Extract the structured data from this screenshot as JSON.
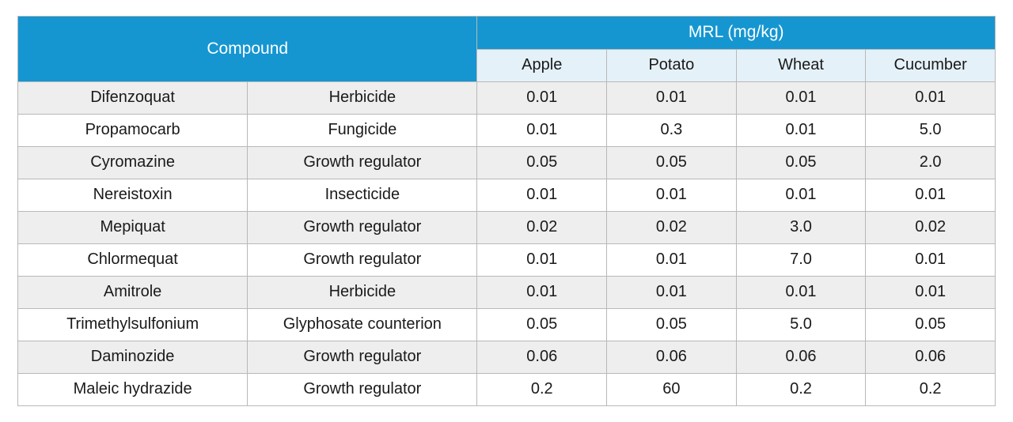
{
  "table": {
    "type": "table",
    "header_main": {
      "compound": "Compound",
      "mrl": "MRL (mg/kg)"
    },
    "header_sub": [
      "Apple",
      "Potato",
      "Wheat",
      "Cucumber"
    ],
    "rows": [
      {
        "name": "Difenzoquat",
        "type": "Herbicide",
        "vals": [
          "0.01",
          "0.01",
          "0.01",
          "0.01"
        ]
      },
      {
        "name": "Propamocarb",
        "type": "Fungicide",
        "vals": [
          "0.01",
          "0.3",
          "0.01",
          "5.0"
        ]
      },
      {
        "name": "Cyromazine",
        "type": "Growth regulator",
        "vals": [
          "0.05",
          "0.05",
          "0.05",
          "2.0"
        ]
      },
      {
        "name": "Nereistoxin",
        "type": "Insecticide",
        "vals": [
          "0.01",
          "0.01",
          "0.01",
          "0.01"
        ]
      },
      {
        "name": "Mepiquat",
        "type": "Growth regulator",
        "vals": [
          "0.02",
          "0.02",
          "3.0",
          "0.02"
        ]
      },
      {
        "name": "Chlormequat",
        "type": "Growth regulator",
        "vals": [
          "0.01",
          "0.01",
          "7.0",
          "0.01"
        ]
      },
      {
        "name": "Amitrole",
        "type": "Herbicide",
        "vals": [
          "0.01",
          "0.01",
          "0.01",
          "0.01"
        ]
      },
      {
        "name": "Trimethylsulfonium",
        "type": "Glyphosate counterion",
        "vals": [
          "0.05",
          "0.05",
          "5.0",
          "0.05"
        ]
      },
      {
        "name": "Daminozide",
        "type": "Growth regulator",
        "vals": [
          "0.06",
          "0.06",
          "0.06",
          "0.06"
        ]
      },
      {
        "name": "Maleic hydrazide",
        "type": "Growth regulator",
        "vals": [
          "0.2",
          "60",
          "0.2",
          "0.2"
        ]
      }
    ],
    "style": {
      "header_bg": "#1596d1",
      "header_fg": "#ffffff",
      "subheader_bg": "#e5f1f8",
      "subheader_fg": "#1a1a1a",
      "row_odd_bg": "#eeeeee",
      "row_even_bg": "#ffffff",
      "cell_fg": "#1a1a1a",
      "border_color": "#b8b8b8",
      "header_fontsize": 21,
      "cell_fontsize": 20
    }
  }
}
